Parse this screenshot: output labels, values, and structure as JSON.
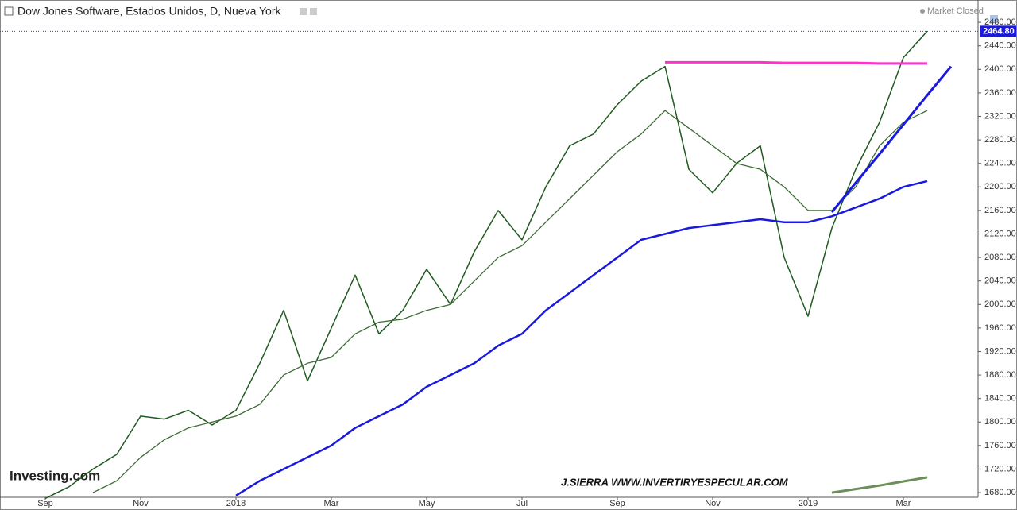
{
  "chart_data": {
    "type": "line",
    "title": "Dow Jones Software, Estados Unidos, D, Nueva York",
    "status": "Market Closed",
    "watermark": "Investing.com",
    "signature": "J.SIERRA  WWW.INVERTIRYESPECULAR.COM",
    "categories": [
      "Sep",
      null,
      null,
      null,
      "Nov",
      null,
      null,
      null,
      "2018",
      null,
      null,
      null,
      "Mar",
      null,
      null,
      null,
      "May",
      null,
      null,
      null,
      "Jul",
      null,
      null,
      null,
      "Sep",
      null,
      null,
      null,
      "Nov",
      null,
      null,
      null,
      "2019",
      null,
      null,
      null,
      "Mar",
      null,
      null
    ],
    "series": [
      {
        "color": "#1f5a1f",
        "width": 1.5,
        "values": [
          1670,
          1690,
          1720,
          1745,
          1810,
          1805,
          1820,
          1795,
          1820,
          1900,
          1990,
          1870,
          1960,
          2050,
          1950,
          1990,
          2060,
          2000,
          2090,
          2160,
          2110,
          2200,
          2270,
          2290,
          2340,
          2380,
          2405,
          2230,
          2190,
          2240,
          2270,
          2080,
          1980,
          2130,
          2230,
          2310,
          2420,
          2465,
          null
        ]
      },
      {
        "color": "#3d6b35",
        "width": 1.3,
        "values": [
          null,
          null,
          1680,
          1700,
          1740,
          1770,
          1790,
          1800,
          1810,
          1830,
          1880,
          1900,
          1910,
          1950,
          1970,
          1975,
          1990,
          2000,
          2040,
          2080,
          2100,
          2140,
          2180,
          2220,
          2260,
          2290,
          2330,
          2300,
          2270,
          2240,
          2230,
          2200,
          2160,
          2160,
          2200,
          2270,
          2310,
          2330,
          null
        ]
      },
      {
        "color": "#1a1adf",
        "width": 2.5,
        "values": [
          null,
          null,
          null,
          null,
          null,
          null,
          null,
          null,
          1675,
          1700,
          1720,
          1740,
          1760,
          1790,
          1810,
          1830,
          1860,
          1880,
          1900,
          1930,
          1950,
          1990,
          2020,
          2050,
          2080,
          2110,
          2120,
          2130,
          2135,
          2140,
          2145,
          2140,
          2140,
          2150,
          2165,
          2180,
          2200,
          2210,
          null
        ]
      },
      {
        "color": "#ff33cc",
        "width": 3,
        "values": [
          null,
          null,
          null,
          null,
          null,
          null,
          null,
          null,
          null,
          null,
          null,
          null,
          null,
          null,
          null,
          null,
          null,
          null,
          null,
          null,
          null,
          null,
          null,
          null,
          null,
          null,
          2412,
          2412,
          2412,
          2412,
          2412,
          2411,
          2411,
          2411,
          2411,
          2410,
          2410,
          2410,
          null
        ]
      },
      {
        "color": "#1a1adf",
        "width": 3,
        "values": [
          null,
          null,
          null,
          null,
          null,
          null,
          null,
          null,
          null,
          null,
          null,
          null,
          null,
          null,
          null,
          null,
          null,
          null,
          null,
          null,
          null,
          null,
          null,
          null,
          null,
          null,
          null,
          null,
          null,
          null,
          null,
          null,
          null,
          2157,
          2207,
          2256,
          2306,
          2356,
          2405
        ]
      },
      {
        "color": "#6b8e5a",
        "width": 3,
        "values": [
          null,
          null,
          null,
          null,
          null,
          null,
          null,
          null,
          null,
          null,
          null,
          null,
          null,
          null,
          null,
          null,
          null,
          null,
          null,
          null,
          null,
          null,
          null,
          null,
          null,
          null,
          null,
          null,
          null,
          null,
          null,
          null,
          null,
          1680,
          1686,
          1692,
          1699,
          1706,
          null
        ]
      }
    ],
    "last_price": {
      "value": 2464.8,
      "label": "2464.80"
    },
    "ylim": [
      1672,
      2518
    ],
    "yticks": [
      {
        "value": 1680,
        "label": "1680.00"
      },
      {
        "value": 1720,
        "label": "1720.00"
      },
      {
        "value": 1760,
        "label": "1760.00"
      },
      {
        "value": 1800,
        "label": "1800.00"
      },
      {
        "value": 1840,
        "label": "1840.00"
      },
      {
        "value": 1880,
        "label": "1880.00"
      },
      {
        "value": 1920,
        "label": "1920.00"
      },
      {
        "value": 1960,
        "label": "1960.00"
      },
      {
        "value": 2000,
        "label": "2000.00"
      },
      {
        "value": 2040,
        "label": "2040.00"
      },
      {
        "value": 2080,
        "label": "2080.00"
      },
      {
        "value": 2120,
        "label": "2120.00"
      },
      {
        "value": 2160,
        "label": "2160.00"
      },
      {
        "value": 2200,
        "label": "2200.00"
      },
      {
        "value": 2240,
        "label": "2240.00"
      },
      {
        "value": 2280,
        "label": "2280.00"
      },
      {
        "value": 2320,
        "label": "2320.00"
      },
      {
        "value": 2360,
        "label": "2360.00"
      },
      {
        "value": 2400,
        "label": "2400.00"
      },
      {
        "value": 2440,
        "label": "2440.00"
      },
      {
        "value": 2480,
        "label": "2480.00"
      }
    ]
  }
}
